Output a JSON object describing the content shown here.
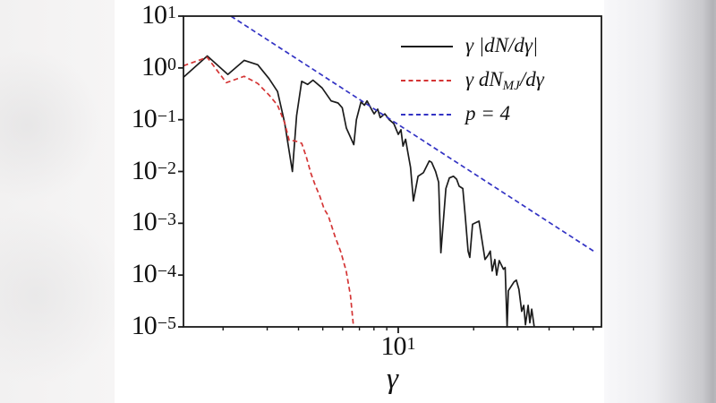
{
  "figure": {
    "background": "#ffffff",
    "frame_left_color": "#f2f1f1",
    "frame_right_color": "#c9c9cd",
    "spine_color": "#1a1a1a"
  },
  "chart_data": {
    "type": "line",
    "title": "",
    "xlabel": "γ",
    "ylabel": "",
    "xscale": "log",
    "yscale": "log",
    "xlim": [
      1.39,
      64.7
    ],
    "ylim": [
      1e-05,
      10
    ],
    "grid": false,
    "x_major_ticks": [
      {
        "value": 10,
        "base": "10",
        "exp": "1"
      }
    ],
    "x_minor_ticks": [
      2,
      3,
      4,
      5,
      6,
      7,
      8,
      9,
      20,
      30,
      40,
      50,
      60
    ],
    "y_ticks": [
      {
        "value": 10,
        "base": "10",
        "exp": "1"
      },
      {
        "value": 1,
        "base": "10",
        "exp": "0"
      },
      {
        "value": 0.1,
        "base": "10",
        "exp": "−1"
      },
      {
        "value": 0.01,
        "base": "10",
        "exp": "−2"
      },
      {
        "value": 0.001,
        "base": "10",
        "exp": "−3"
      },
      {
        "value": 0.0001,
        "base": "10",
        "exp": "−4"
      },
      {
        "value": 1e-05,
        "base": "10",
        "exp": "−5"
      }
    ],
    "legend": {
      "position": "upper right",
      "frame": false,
      "entries": [
        {
          "pre": "γ |dN/dγ|",
          "sub": "",
          "post": "",
          "color": "#1c1c1c",
          "style": "solid"
        },
        {
          "pre": "γ dN",
          "sub": "MJ",
          "post": "/dγ",
          "color": "#d43535",
          "style": "dashed"
        },
        {
          "pre": "p = 4",
          "sub": "",
          "post": "",
          "color": "#3333c4",
          "style": "dashed"
        }
      ]
    },
    "series": [
      {
        "name": "gamma |dN/dgamma|",
        "color": "#1c1c1c",
        "style": "solid",
        "points": [
          [
            1.39,
            0.66
          ],
          [
            1.73,
            1.7
          ],
          [
            2.09,
            0.75
          ],
          [
            2.43,
            1.4
          ],
          [
            2.75,
            1.15
          ],
          [
            3.05,
            0.62
          ],
          [
            3.3,
            0.35
          ],
          [
            3.52,
            0.088
          ],
          [
            3.78,
            0.01
          ],
          [
            3.93,
            0.12
          ],
          [
            4.12,
            0.55
          ],
          [
            4.35,
            0.48
          ],
          [
            4.57,
            0.58
          ],
          [
            4.97,
            0.41
          ],
          [
            5.4,
            0.23
          ],
          [
            5.75,
            0.21
          ],
          [
            5.98,
            0.17
          ],
          [
            6.21,
            0.069
          ],
          [
            6.65,
            0.033
          ],
          [
            6.81,
            0.1
          ],
          [
            7.1,
            0.22
          ],
          [
            7.33,
            0.19
          ],
          [
            7.51,
            0.23
          ],
          [
            7.82,
            0.16
          ],
          [
            8.01,
            0.13
          ],
          [
            8.28,
            0.16
          ],
          [
            8.47,
            0.11
          ],
          [
            8.84,
            0.13
          ],
          [
            9.21,
            0.1
          ],
          [
            9.6,
            0.084
          ],
          [
            10.0,
            0.052
          ],
          [
            10.25,
            0.064
          ],
          [
            10.45,
            0.031
          ],
          [
            10.7,
            0.042
          ],
          [
            10.9,
            0.025
          ],
          [
            11.2,
            0.012
          ],
          [
            11.5,
            0.0027
          ],
          [
            12.0,
            0.0081
          ],
          [
            12.6,
            0.0095
          ],
          [
            13.3,
            0.016
          ],
          [
            13.6,
            0.015
          ],
          [
            14.1,
            0.01
          ],
          [
            14.5,
            0.0062
          ],
          [
            14.8,
            0.00027
          ],
          [
            15.5,
            0.0047
          ],
          [
            16.0,
            0.0075
          ],
          [
            16.6,
            0.0081
          ],
          [
            17.1,
            0.0071
          ],
          [
            17.5,
            0.0052
          ],
          [
            18.1,
            0.0047
          ],
          [
            18.5,
            0.0014
          ],
          [
            19.0,
            0.00029
          ],
          [
            19.3,
            0.00022
          ],
          [
            19.8,
            0.00096
          ],
          [
            21.0,
            0.0011
          ],
          [
            21.5,
            0.00054
          ],
          [
            22.2,
            0.0002
          ],
          [
            22.8,
            0.00024
          ],
          [
            23.3,
            0.00029
          ],
          [
            23.7,
            0.00012
          ],
          [
            24.3,
            0.0002
          ],
          [
            24.7,
            0.0001
          ],
          [
            25.3,
            0.00019
          ],
          [
            26.3,
            0.00013
          ],
          [
            26.7,
            0.00014
          ],
          [
            27.2,
            1e-05
          ],
          [
            27.5,
            5e-05
          ],
          [
            29.0,
            7.4e-05
          ],
          [
            29.6,
            8e-05
          ],
          [
            30.3,
            5.3e-05
          ],
          [
            31.1,
            2e-05
          ],
          [
            31.7,
            2.6e-05
          ],
          [
            32.2,
            1.1e-05
          ],
          [
            33.0,
            2.6e-05
          ],
          [
            33.5,
            1.2e-05
          ],
          [
            34.1,
            2.2e-05
          ],
          [
            34.9,
            1e-05
          ]
        ]
      },
      {
        "name": "gamma dN_MJ/dgamma",
        "color": "#d43535",
        "style": "dashed",
        "points": [
          [
            1.39,
            1.1
          ],
          [
            1.73,
            1.6
          ],
          [
            2.06,
            0.52
          ],
          [
            2.43,
            0.69
          ],
          [
            2.75,
            0.5
          ],
          [
            3.05,
            0.3
          ],
          [
            3.3,
            0.19
          ],
          [
            3.52,
            0.088
          ],
          [
            3.67,
            0.04
          ],
          [
            3.87,
            0.039
          ],
          [
            4.12,
            0.035
          ],
          [
            4.3,
            0.019
          ],
          [
            4.48,
            0.0093
          ],
          [
            4.67,
            0.0053
          ],
          [
            4.86,
            0.0034
          ],
          [
            5.06,
            0.0019
          ],
          [
            5.26,
            0.0014
          ],
          [
            5.6,
            0.00055
          ],
          [
            5.9,
            0.00028
          ],
          [
            6.2,
            0.00012
          ],
          [
            6.45,
            4e-05
          ],
          [
            6.63,
            1e-05
          ]
        ]
      },
      {
        "name": "p = 4 power law",
        "color": "#3333c4",
        "style": "dashed",
        "points": [
          [
            2.15,
            10
          ],
          [
            61.6,
            0.00027
          ]
        ]
      }
    ]
  }
}
